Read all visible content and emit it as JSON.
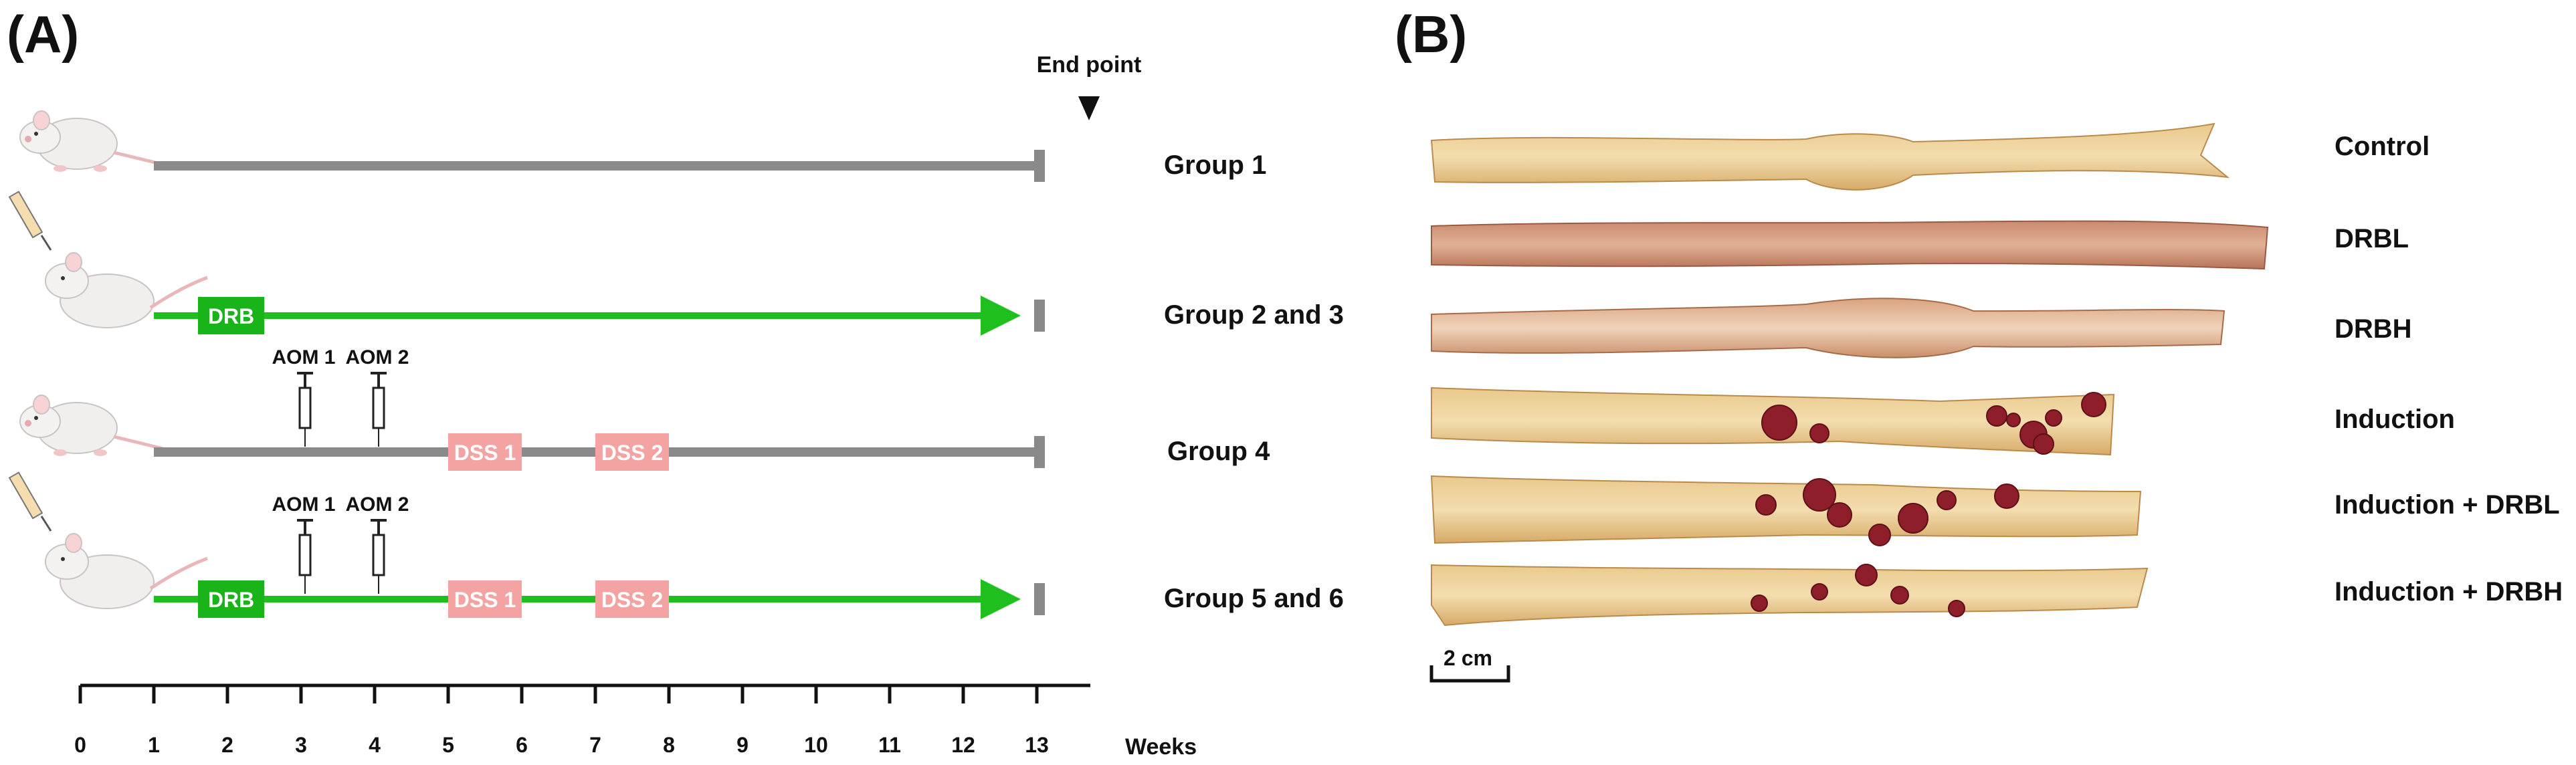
{
  "panel_a": {
    "label": "(A)",
    "end_point_label": "End point",
    "groups": [
      {
        "label": "Group 1",
        "line": "gray",
        "drb": false,
        "aom": false,
        "dss": false,
        "mouse": "plain"
      },
      {
        "label": "Group 2 and 3",
        "line": "green",
        "drb": true,
        "aom": false,
        "dss": false,
        "mouse": "syringe"
      },
      {
        "label": "Group 4",
        "line": "gray",
        "drb": false,
        "aom": true,
        "dss": true,
        "mouse": "plain"
      },
      {
        "label": "Group 5 and 6",
        "line": "green",
        "drb": true,
        "aom": true,
        "dss": true,
        "mouse": "syringe"
      }
    ],
    "drb_label": "DRB",
    "drb_weeks": [
      1.6,
      2.5
    ],
    "aom": [
      {
        "label": "AOM 1",
        "week": 3
      },
      {
        "label": "AOM 2",
        "week": 4
      }
    ],
    "dss": [
      {
        "label": "DSS 1",
        "start": 5,
        "end": 6
      },
      {
        "label": "DSS 2",
        "start": 7,
        "end": 8
      }
    ],
    "line_start_week": 1,
    "line_end_week": 13,
    "axis": {
      "ticks": [
        "0",
        "1",
        "2",
        "3",
        "4",
        "5",
        "6",
        "7",
        "8",
        "9",
        "10",
        "11",
        "12",
        "13"
      ],
      "unit_label": "Weeks"
    },
    "colors": {
      "gray_line": "#8a8a8a",
      "green_line": "#1fbf1f",
      "drb_box": "#19b419",
      "dss_box": "#f4a3a3",
      "end_cap": "#8a8a8a"
    }
  },
  "panel_b": {
    "label": "(B)",
    "samples": [
      {
        "label": "Control",
        "tumors": 0
      },
      {
        "label": "DRBL",
        "tumors": 0
      },
      {
        "label": "DRBH",
        "tumors": 0
      },
      {
        "label": "Induction",
        "tumors": 8
      },
      {
        "label": "Induction + DRBL",
        "tumors": 7
      },
      {
        "label": "Induction + DRBH",
        "tumors": 5
      }
    ],
    "scale_bar_label": "2 cm"
  }
}
